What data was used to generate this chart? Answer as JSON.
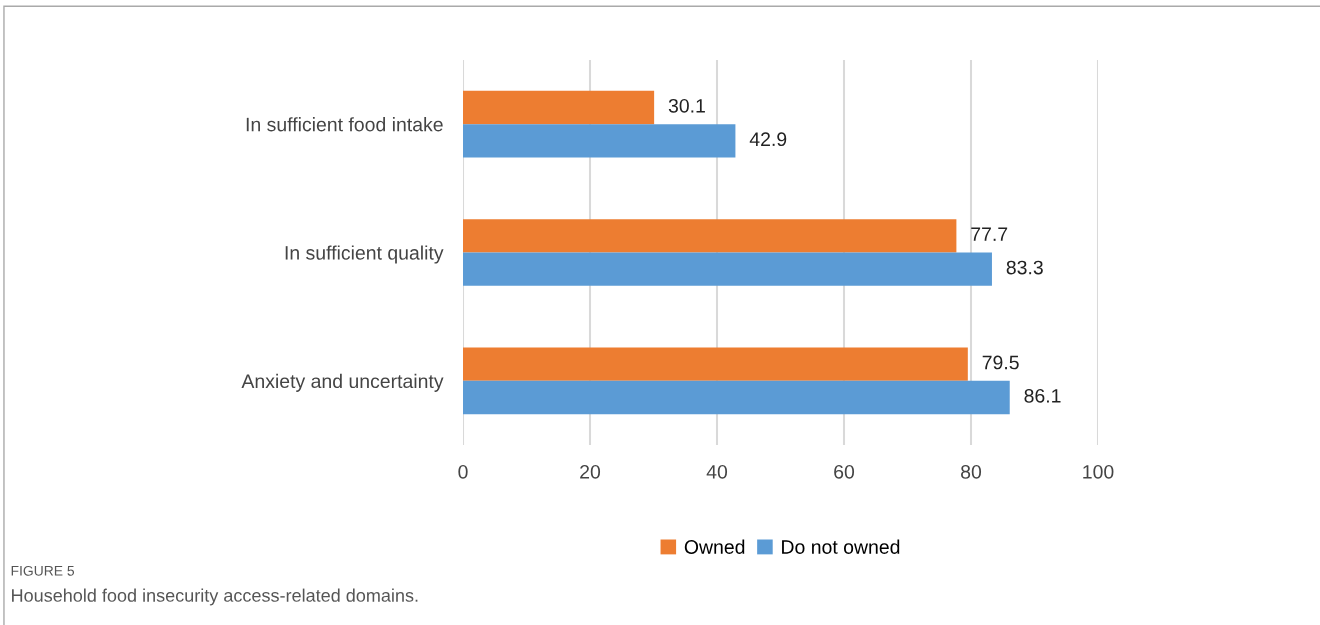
{
  "chart_data": {
    "type": "bar",
    "orientation": "horizontal",
    "categories": [
      "In sufficient food intake",
      "In sufficient quality",
      "Anxiety and uncertainty"
    ],
    "series": [
      {
        "name": "Owned",
        "color": "#ed7d31",
        "values": [
          30.1,
          77.7,
          79.5
        ]
      },
      {
        "name": "Do not owned",
        "color": "#5b9bd5",
        "values": [
          42.9,
          83.3,
          86.1
        ]
      }
    ],
    "xlim": [
      0,
      100
    ],
    "xticks": [
      0,
      20,
      40,
      60,
      80,
      100
    ],
    "grid": "x",
    "legend": "bottom",
    "data_labels": true,
    "annotations": [
      "FIGURE 5",
      "Household food insecurity access-related domains."
    ]
  }
}
